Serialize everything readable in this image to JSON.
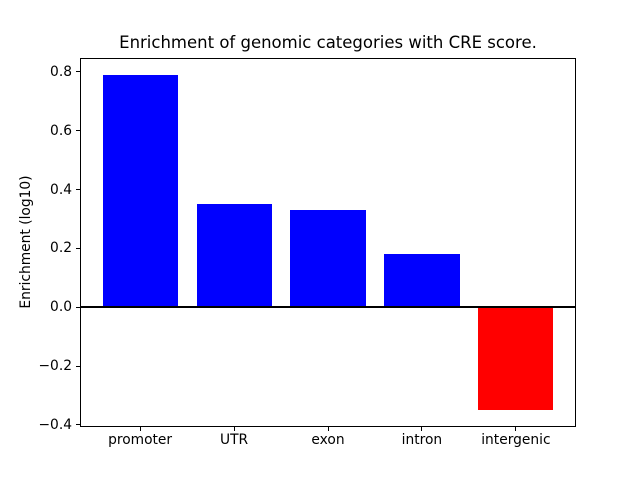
{
  "chart_data": {
    "type": "bar",
    "title": "Enrichment of genomic categories with CRE score.",
    "ylabel": "Enrichment (log10)",
    "xlabel": "",
    "categories": [
      "promoter",
      "UTR",
      "exon",
      "intron",
      "intergenic"
    ],
    "values": [
      0.79,
      0.35,
      0.33,
      0.18,
      -0.35
    ],
    "colors": [
      "#0000ff",
      "#0000ff",
      "#0000ff",
      "#0000ff",
      "#ff0000"
    ],
    "positive_color": "#0000ff",
    "negative_color": "#ff0000",
    "bar_width_units": 0.8,
    "ylim": [
      -0.407,
      0.847
    ],
    "xlim": [
      -0.64,
      4.64
    ],
    "yticks": [
      -0.4,
      -0.2,
      0.0,
      0.2,
      0.4,
      0.6,
      0.8
    ],
    "ytick_labels": [
      "−0.4",
      "−0.2",
      "0.0",
      "0.2",
      "0.4",
      "0.6",
      "0.8"
    ],
    "grid": false,
    "legend": null,
    "zero_line": true,
    "axis_color": "#000000",
    "background_color": "#ffffff"
  }
}
